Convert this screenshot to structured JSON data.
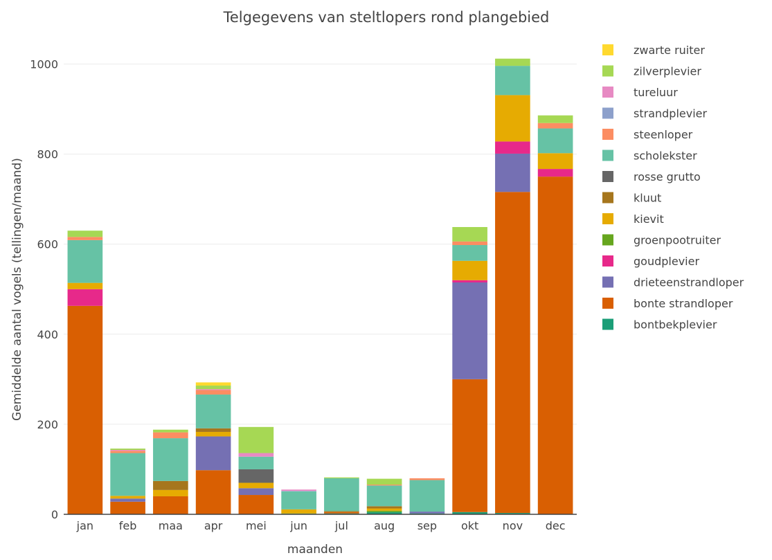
{
  "chart_data": {
    "type": "bar",
    "stacked": true,
    "title": "Telgegevens van steltlopers rond plangebied",
    "xlabel": "maanden",
    "ylabel": "Gemiddelde aantal vogels (tellingen/maand)",
    "ylim": [
      0,
      1050
    ],
    "yticks": [
      0,
      200,
      400,
      600,
      800,
      1000
    ],
    "grid": true,
    "legend_position": "right",
    "categories": [
      "jan",
      "feb",
      "maa",
      "apr",
      "mei",
      "jun",
      "jul",
      "aug",
      "sep",
      "okt",
      "nov",
      "dec"
    ],
    "series": [
      {
        "name": "bontbekplevier",
        "color": "#1b9e77",
        "values": [
          0,
          0,
          0,
          0,
          0,
          1,
          2,
          5,
          2,
          5,
          3,
          0
        ]
      },
      {
        "name": "bonte strandloper",
        "color": "#d95f02",
        "values": [
          463,
          28,
          40,
          98,
          43,
          0,
          3,
          0,
          0,
          295,
          713,
          750
        ]
      },
      {
        "name": "drieteenstrandloper",
        "color": "#7570b3",
        "values": [
          0,
          7,
          0,
          75,
          15,
          0,
          0,
          0,
          4,
          215,
          85,
          0
        ]
      },
      {
        "name": "goudplevier",
        "color": "#e7298a",
        "values": [
          37,
          0,
          0,
          0,
          0,
          0,
          0,
          0,
          0,
          5,
          27,
          17
        ]
      },
      {
        "name": "groenpootruiter",
        "color": "#66a61e",
        "values": [
          0,
          0,
          0,
          0,
          0,
          1,
          0,
          3,
          0,
          0,
          0,
          0
        ]
      },
      {
        "name": "kievit",
        "color": "#e6ab02",
        "values": [
          14,
          6,
          14,
          10,
          12,
          9,
          0,
          5,
          0,
          43,
          103,
          35
        ]
      },
      {
        "name": "kluut",
        "color": "#a6761d",
        "values": [
          0,
          0,
          20,
          8,
          0,
          0,
          2,
          5,
          0,
          0,
          0,
          0
        ]
      },
      {
        "name": "rosse grutto",
        "color": "#666666",
        "values": [
          0,
          0,
          0,
          0,
          30,
          0,
          0,
          0,
          0,
          0,
          0,
          0
        ]
      },
      {
        "name": "scholekster",
        "color": "#66c2a5",
        "values": [
          95,
          95,
          95,
          75,
          28,
          40,
          73,
          46,
          70,
          35,
          65,
          55
        ]
      },
      {
        "name": "steenloper",
        "color": "#fc8d62",
        "values": [
          7,
          5,
          13,
          10,
          0,
          0,
          0,
          2,
          4,
          8,
          0,
          12
        ]
      },
      {
        "name": "strandplevier",
        "color": "#8da0cb",
        "values": [
          0,
          0,
          0,
          0,
          0,
          1,
          0,
          0,
          0,
          0,
          0,
          0
        ]
      },
      {
        "name": "tureluur",
        "color": "#e78ac3",
        "values": [
          0,
          2,
          0,
          2,
          8,
          3,
          0,
          0,
          0,
          0,
          0,
          0
        ]
      },
      {
        "name": "zilverplevier",
        "color": "#a6d854",
        "values": [
          14,
          3,
          6,
          8,
          58,
          0,
          2,
          13,
          0,
          32,
          16,
          17
        ]
      },
      {
        "name": "zwarte ruiter",
        "color": "#ffd92f",
        "values": [
          0,
          0,
          0,
          7,
          0,
          0,
          0,
          0,
          0,
          0,
          0,
          0
        ]
      }
    ]
  }
}
